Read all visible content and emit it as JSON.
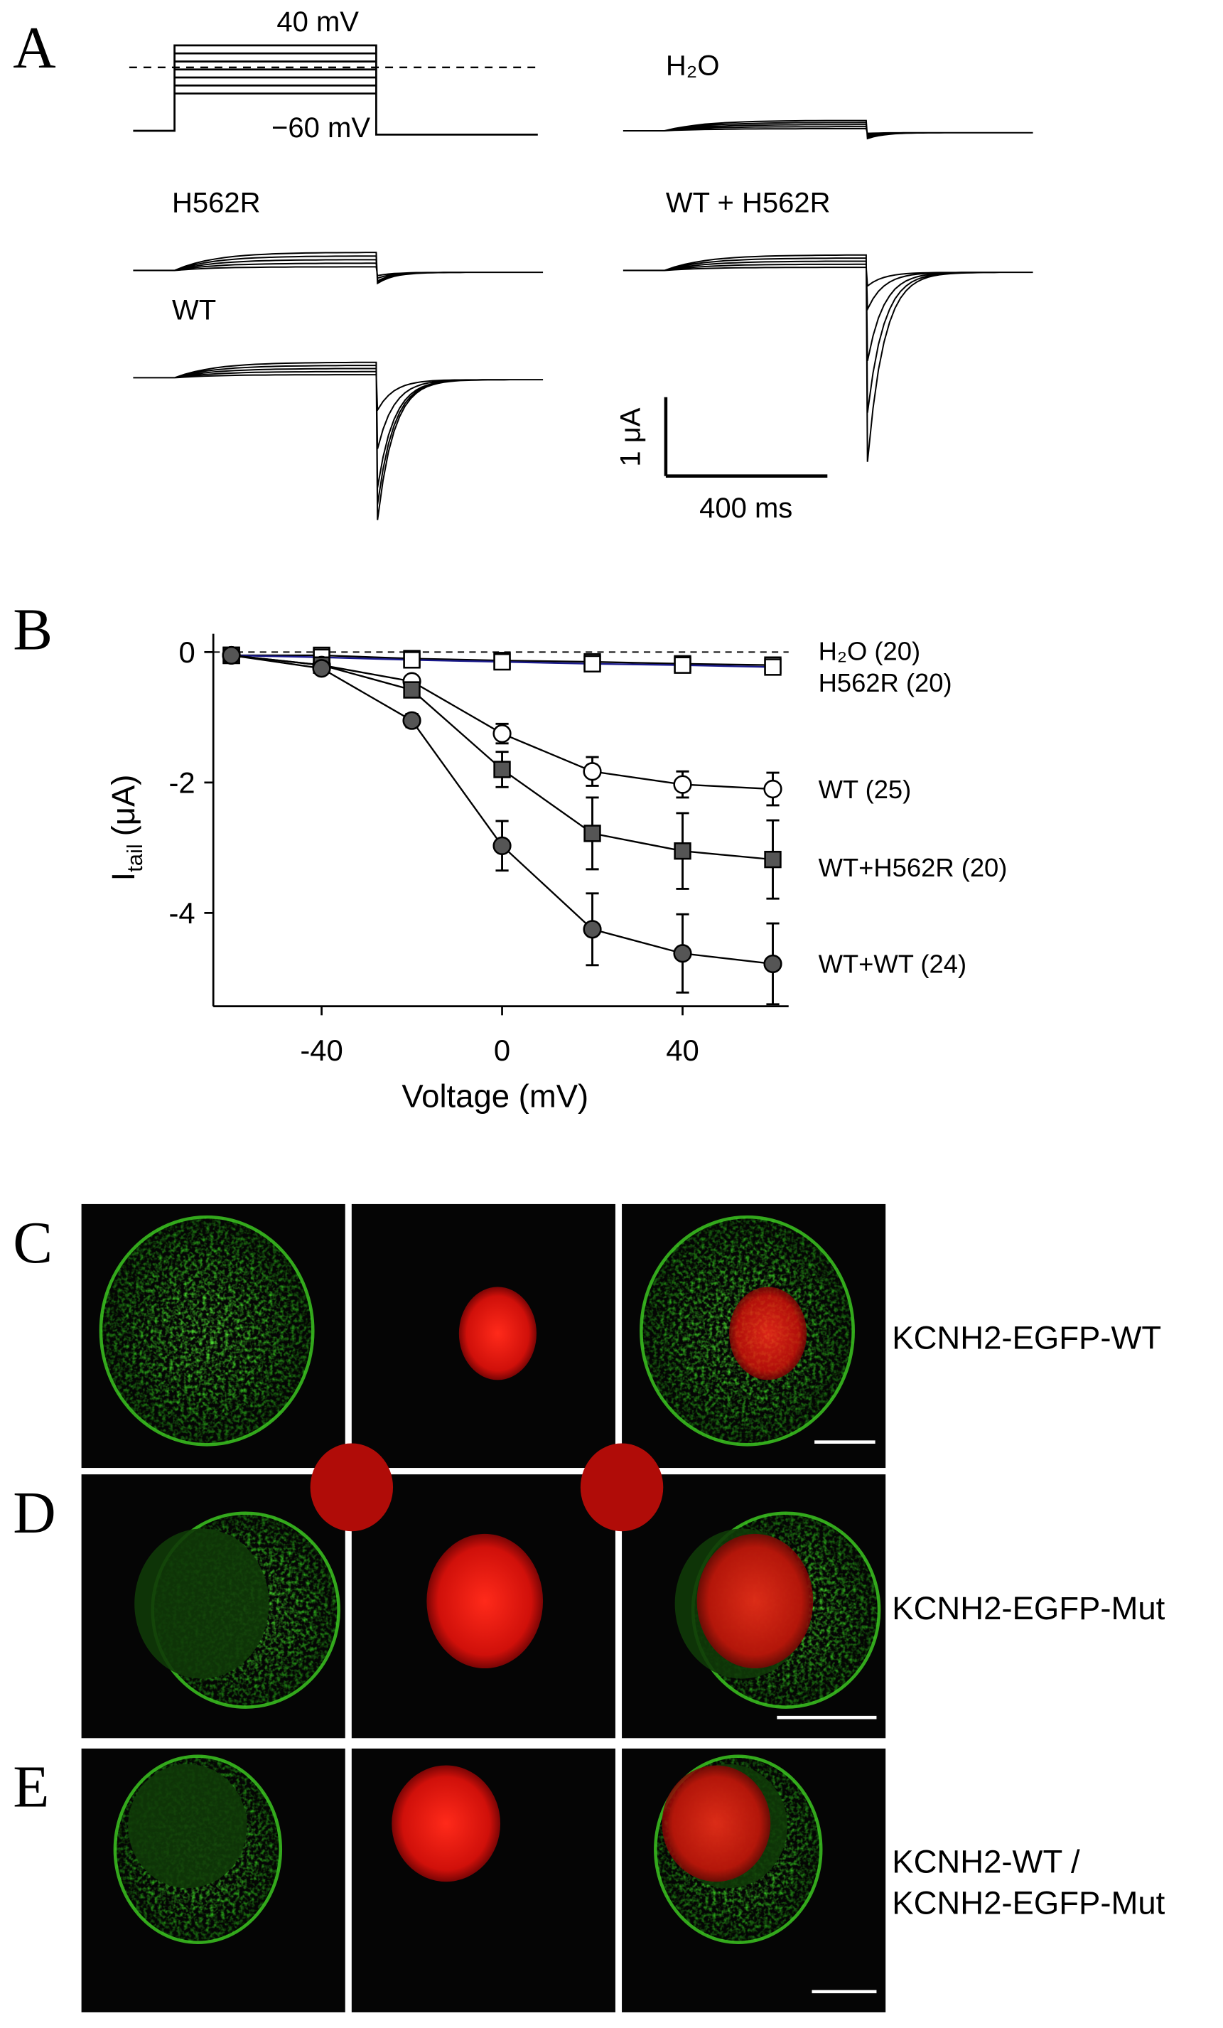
{
  "panel_a": {
    "label": "A",
    "protocol_top": "40 mV",
    "protocol_bottom": "−60 mV",
    "traces": [
      "H₂O",
      "H562R",
      "WT + H562R",
      "WT"
    ],
    "scale_current": "1 μA",
    "scale_time": "400 ms"
  },
  "panel_b_label": "B",
  "chart_data": {
    "type": "line",
    "x": [
      -60,
      -40,
      -20,
      0,
      20,
      40,
      60
    ],
    "xlim": [
      -64,
      63.5
    ],
    "ylim": [
      -5.43,
      0.28
    ],
    "xticks": [
      -40,
      0,
      40
    ],
    "yticks": [
      -4,
      -2,
      0
    ],
    "x_label": "Voltage (mV)",
    "y_label": {
      "symbol": "I",
      "subscript": "tail",
      "unit": "(μA)"
    },
    "zero_line": true,
    "series": [
      {
        "name": "H₂O (20)",
        "color": "#000000",
        "marker": "square",
        "fill": "#ffffff",
        "values": [
          -0.05,
          -0.05,
          -0.1,
          -0.13,
          -0.15,
          -0.18,
          -0.2
        ],
        "errors": [
          null,
          null,
          null,
          null,
          null,
          null,
          null
        ]
      },
      {
        "name": "H562R (20)",
        "color": "#1a1a8c",
        "marker": "square",
        "fill": "#ffffff",
        "values": [
          -0.05,
          -0.08,
          -0.12,
          -0.15,
          -0.18,
          -0.2,
          -0.23
        ],
        "errors": [
          null,
          null,
          null,
          null,
          null,
          null,
          null
        ]
      },
      {
        "name": "WT (25)",
        "color": "#000000",
        "marker": "circle",
        "fill": "#ffffff",
        "values": [
          -0.05,
          -0.2,
          -0.45,
          -1.25,
          -1.83,
          -2.03,
          -2.1
        ],
        "errors": [
          null,
          null,
          null,
          0.15,
          0.22,
          0.2,
          0.25
        ]
      },
      {
        "name": "WT+H562R (20)",
        "color": "#000000",
        "marker": "square",
        "fill": "#555555",
        "values": [
          -0.05,
          -0.2,
          -0.58,
          -1.8,
          -2.78,
          -3.05,
          -3.18
        ],
        "errors": [
          null,
          null,
          null,
          0.27,
          0.55,
          0.58,
          0.6
        ]
      },
      {
        "name": "WT+WT (24)",
        "color": "#000000",
        "marker": "circle",
        "fill": "#555555",
        "values": [
          -0.05,
          -0.25,
          -1.05,
          -2.97,
          -4.25,
          -4.62,
          -4.78
        ],
        "errors": [
          null,
          null,
          0.1,
          0.38,
          0.55,
          0.6,
          0.62
        ]
      }
    ]
  },
  "panels": [
    {
      "label": "C",
      "caption": [
        "KCNH2-EGFP-WT"
      ]
    },
    {
      "label": "D",
      "caption": [
        "KCNH2-EGFP-Mut"
      ]
    },
    {
      "label": "E",
      "caption": [
        "KCNH2-WT /",
        "KCNH2-EGFP-Mut"
      ]
    }
  ]
}
